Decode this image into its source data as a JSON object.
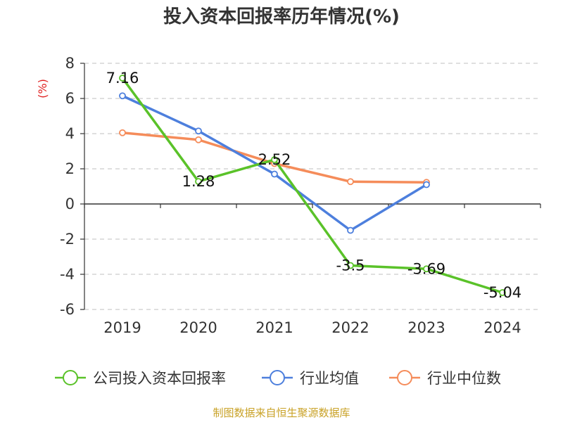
{
  "chart_data": {
    "type": "line",
    "title": "投入资本回报率历年情况(%)",
    "ylabel": "(%)",
    "xlabel": "",
    "categories": [
      "2019",
      "2020",
      "2021",
      "2022",
      "2023",
      "2024"
    ],
    "ylim": [
      -6,
      8
    ],
    "yticks": [
      8,
      6,
      4,
      2,
      0,
      -2,
      -4,
      -6
    ],
    "ytick_labels": [
      "8",
      "6",
      "4",
      "2",
      "0",
      "-2",
      "-4",
      "-6"
    ],
    "grid": "horizontal dashed",
    "legend_position": "bottom",
    "series": [
      {
        "name": "公司投入资本回报率",
        "color": "#5ac229",
        "values": [
          7.16,
          1.28,
          2.52,
          -3.5,
          -3.69,
          -5.04
        ],
        "labels": [
          "7.16",
          "1.28",
          "2.52",
          "-3.5",
          "-3.69",
          "-5.04"
        ]
      },
      {
        "name": "行业均值",
        "color": "#4d7fdd",
        "values": [
          6.15,
          4.15,
          1.7,
          -1.5,
          1.1,
          null
        ]
      },
      {
        "name": "行业中位数",
        "color": "#f58c5a",
        "values": [
          4.05,
          3.65,
          2.3,
          1.27,
          1.23,
          null
        ]
      }
    ]
  },
  "footer": {
    "source": "制图数据来自恒生聚源数据库"
  }
}
